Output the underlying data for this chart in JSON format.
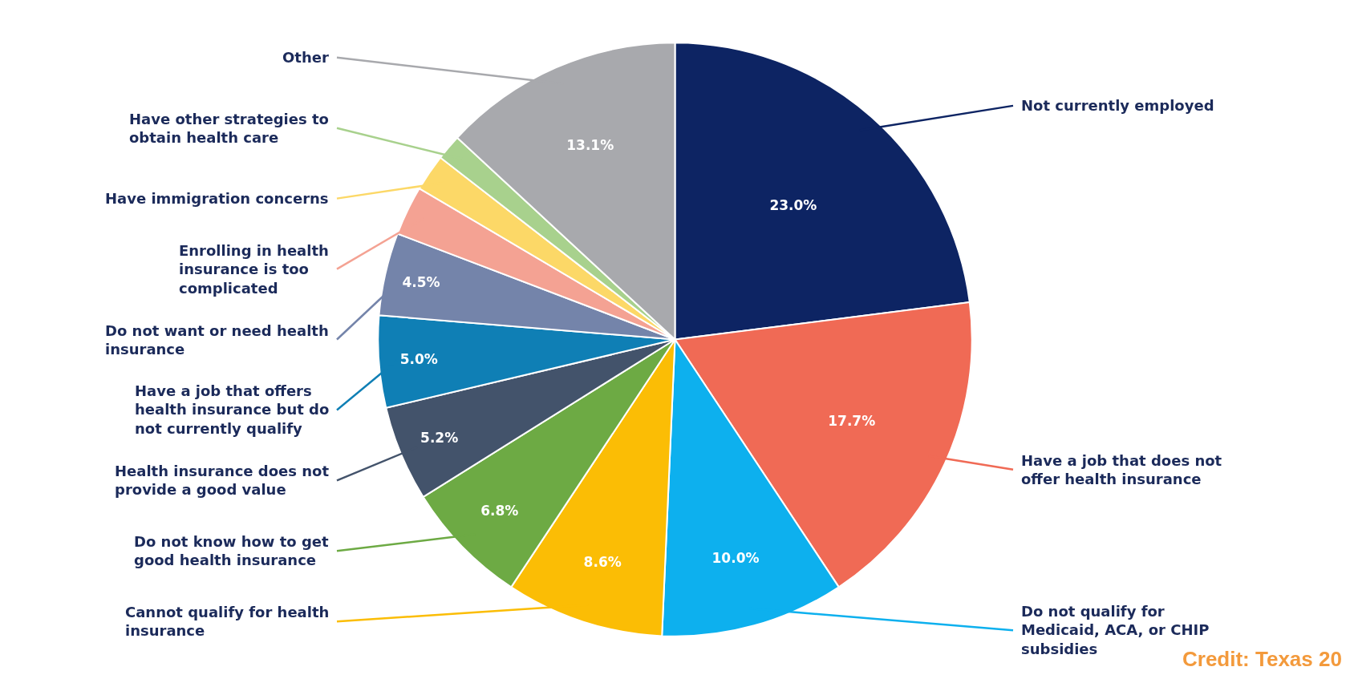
{
  "chart_data": {
    "type": "pie",
    "categories": [
      "Not currently employed",
      "Have a job that does not offer health insurance",
      "Do not qualify for Medicaid, ACA, or CHIP subsidies",
      "Cannot qualify for health insurance",
      "Do not know how to get good health insurance",
      "Health insurance does not provide a good value",
      "Have a job that offers health insurance but do not currently qualify",
      "Do not want or need health insurance",
      "Enrolling in health insurance is too complicated",
      "Have immigration concerns",
      "Have other strategies to obtain health care",
      "Other"
    ],
    "values": [
      23.0,
      17.7,
      10.0,
      8.6,
      6.8,
      5.2,
      5.0,
      4.5,
      2.7,
      2.0,
      1.4,
      13.1
    ],
    "value_labels": [
      "23.0%",
      "17.7%",
      "10.0%",
      "8.6%",
      "6.8%",
      "5.2%",
      "5.0%",
      "4.5%",
      null,
      null,
      null,
      "13.1%"
    ],
    "colors": [
      "#0d2463",
      "#f06a55",
      "#0db0ee",
      "#fbbd05",
      "#6daa44",
      "#43536b",
      "#0f7fb5",
      "#7484aa",
      "#f4a293",
      "#fcd867",
      "#a8d18d",
      "#a8a9ad"
    ],
    "legend": false,
    "annotations": [
      "Credit: Texas 20"
    ]
  }
}
